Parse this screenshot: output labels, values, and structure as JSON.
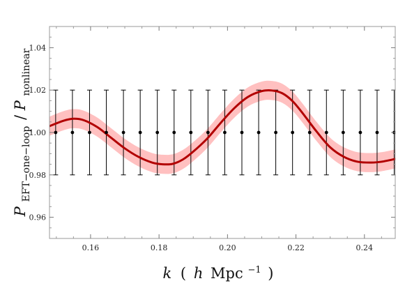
{
  "chart_data": {
    "type": "line",
    "title": "",
    "xlabel": "k ( h Mpc⁻¹ )",
    "xlabel_parts": {
      "var": "k",
      "open": "(",
      "h": "h",
      "unit": "Mpc",
      "exp": "−1",
      "close": ")"
    },
    "ylabel": "P_EFT−one−loop / P_nonlinear",
    "ylabel_parts": {
      "p": "P",
      "num_sub": "EFT−one−loop",
      "slash": "/",
      "den_sub": "nonlinear"
    },
    "xlim": [
      0.148,
      0.249
    ],
    "ylim": [
      0.95,
      1.05
    ],
    "x_ticks": [
      0.16,
      0.18,
      0.2,
      0.22,
      0.24
    ],
    "x_tick_labels": [
      "0.16",
      "0.18",
      "0.20",
      "0.22",
      "0.24"
    ],
    "y_ticks": [
      0.96,
      0.98,
      1.0,
      1.02,
      1.04
    ],
    "y_tick_labels": [
      "0.96",
      "0.98",
      "1.00",
      "1.02",
      "1.04"
    ],
    "grid": false,
    "legend": "none",
    "colors": {
      "line": "#b20000",
      "band": "#ffc0c0",
      "points": "#000000"
    },
    "series": [
      {
        "kind": "line-with-band",
        "band_halfwidth": 0.0045,
        "x": [
          0.148,
          0.152,
          0.155,
          0.158,
          0.162,
          0.166,
          0.17,
          0.174,
          0.178,
          0.181,
          0.184,
          0.187,
          0.19,
          0.194,
          0.198,
          0.202,
          0.206,
          0.21,
          0.213,
          0.216,
          0.219,
          0.222,
          0.226,
          0.23,
          0.234,
          0.238,
          0.242,
          0.245,
          0.249
        ],
        "y": [
          1.003,
          1.0055,
          1.0065,
          1.0058,
          1.0025,
          0.9975,
          0.9925,
          0.9885,
          0.9858,
          0.985,
          0.9852,
          0.9873,
          0.991,
          0.997,
          1.0045,
          1.0115,
          1.0168,
          1.0195,
          1.0198,
          1.0185,
          1.0148,
          1.009,
          1.0005,
          0.993,
          0.9885,
          0.9862,
          0.9858,
          0.9862,
          0.9875
        ]
      },
      {
        "kind": "points-with-errorbars",
        "x": [
          0.1498,
          0.1547,
          0.1597,
          0.1646,
          0.1696,
          0.1745,
          0.1795,
          0.1844,
          0.1893,
          0.1943,
          0.1992,
          0.2042,
          0.2091,
          0.2141,
          0.219,
          0.224,
          0.2289,
          0.2338,
          0.2388,
          0.2437,
          0.2487
        ],
        "y": [
          1.0,
          1.0,
          1.0,
          1.0,
          1.0,
          1.0,
          1.0,
          1.0,
          1.0,
          1.0,
          1.0,
          1.0,
          1.0,
          1.0,
          1.0,
          1.0,
          1.0,
          1.0,
          1.0,
          1.0,
          1.0
        ],
        "yerr": [
          0.02,
          0.02,
          0.02,
          0.02,
          0.02,
          0.02,
          0.02,
          0.02,
          0.02,
          0.02,
          0.02,
          0.02,
          0.02,
          0.02,
          0.02,
          0.02,
          0.02,
          0.02,
          0.02,
          0.02,
          0.02
        ]
      }
    ]
  }
}
